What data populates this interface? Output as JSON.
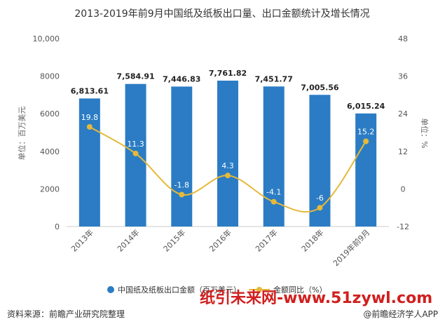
{
  "title": "2013-2019年前9月中国纸及纸板出口量、出口金额统计及增长情况",
  "colors": {
    "bar": "#2B7CC4",
    "line": "#E5B93A",
    "watermark": "#D11F1F"
  },
  "chart_data": {
    "type": "bar",
    "categories": [
      "2013年",
      "2014年",
      "2015年",
      "2016年",
      "2017年",
      "2018年",
      "2019年前9月"
    ],
    "series": [
      {
        "name": "中国纸及纸板出口金额（百万美元）",
        "type": "bar",
        "axis": "left",
        "values": [
          6813.61,
          7584.91,
          7446.83,
          7761.82,
          7451.77,
          7005.56,
          6015.24
        ],
        "labels": [
          "6,813.61",
          "7,584.91",
          "7,446.83",
          "7,761.82",
          "7,451.77",
          "7,005.56",
          "6,015.24"
        ]
      },
      {
        "name": "金额同比（%）",
        "type": "line",
        "axis": "right",
        "values": [
          19.8,
          11.3,
          -1.8,
          4.3,
          -4.1,
          -6,
          15.2
        ],
        "labels": [
          "19.8",
          "11.3",
          "-1.8",
          "4.3",
          "-4.1",
          "-6",
          "15.2"
        ]
      }
    ],
    "ylabel": "单位：百万美元",
    "ylabel_right": "单位：%",
    "ylim": [
      0,
      10000
    ],
    "yticks": [
      "0",
      "2000",
      "4000",
      "6000",
      "8000",
      "10,000"
    ],
    "ylim_right": [
      -12,
      48
    ],
    "yticks_right": [
      "-12",
      "0",
      "12",
      "24",
      "36",
      "48"
    ],
    "grid": false,
    "legend_position": "bottom"
  },
  "legend": {
    "bar_label": "中国纸及纸板出口金额（百万美元）",
    "line_label": "金额同比（%）"
  },
  "footer": {
    "source": "资料来源：前瞻产业研究院整理",
    "credit": "@前瞻经济学人APP",
    "watermark": "纸引未来网-www.51zywl.com"
  }
}
